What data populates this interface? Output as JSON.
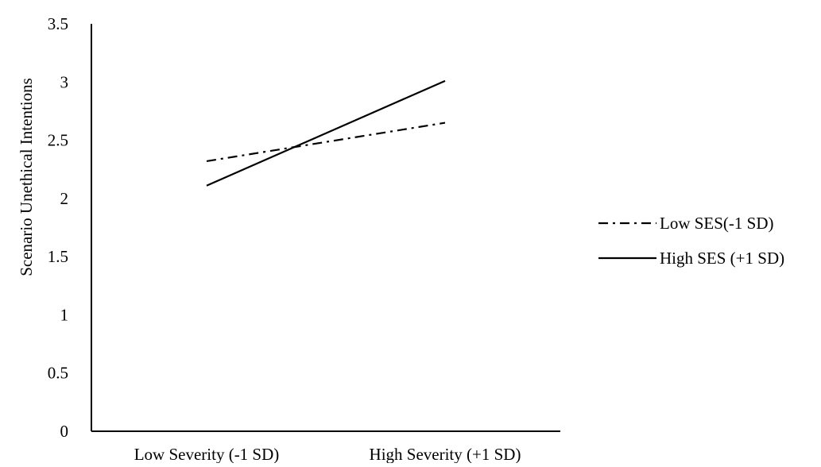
{
  "chart_data": {
    "type": "line",
    "title": "",
    "xlabel": "",
    "ylabel": "Scenario Unethical Intentions",
    "categories": [
      "Low Severity (-1 SD)",
      "High Severity (+1 SD)"
    ],
    "ylim": [
      0,
      3.5
    ],
    "yticks": [
      "0",
      "0.5",
      "1",
      "1.5",
      "2",
      "2.5",
      "3",
      "3.5"
    ],
    "grid": false,
    "legend_position": "right",
    "series": [
      {
        "name": "Low SES(-1 SD)",
        "values": [
          2.32,
          2.65
        ],
        "style": "dash-dot",
        "color": "#000000"
      },
      {
        "name": "High SES (+1 SD)",
        "values": [
          2.11,
          3.01
        ],
        "style": "solid",
        "color": "#000000"
      }
    ]
  }
}
